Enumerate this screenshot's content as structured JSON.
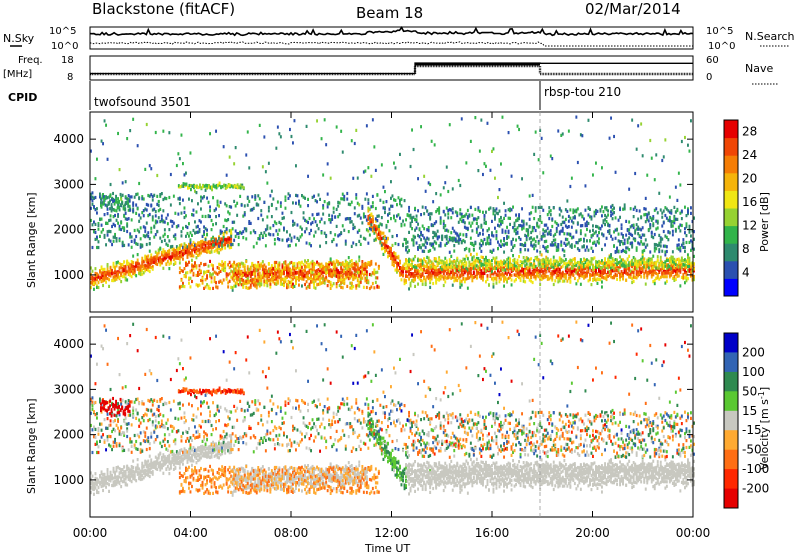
{
  "header": {
    "station": "Blackstone (fitACF)",
    "beam": "Beam 18",
    "date": "02/Mar/2014"
  },
  "noise_panel": {
    "left_label": "N.Sky",
    "right_label": "N.Search",
    "left_ticks": [
      "10^5",
      "10^0"
    ],
    "right_ticks": [
      "10^5",
      "10^0"
    ]
  },
  "freq_panel": {
    "left_label_1": "Freq.",
    "left_label_2": "[MHz]",
    "right_label": "Nave",
    "left_ticks": [
      "18",
      "8"
    ],
    "right_ticks": [
      "60",
      "0"
    ]
  },
  "cpid": {
    "label": "CPID",
    "segments": [
      {
        "start": "00:00",
        "name": "twofsound 3501"
      },
      {
        "start": "18:00",
        "name": "rbsp-tou 210"
      }
    ]
  },
  "colors": {
    "power": [
      "#0000ff",
      "#2b50b0",
      "#2e8a6e",
      "#32b44a",
      "#96d232",
      "#f0e614",
      "#f5b40a",
      "#f57d05",
      "#f04605",
      "#e60000"
    ],
    "velocity": [
      "#0000c8",
      "#3264b4",
      "#2f8a50",
      "#5ac832",
      "#c8c8c0",
      "#ffaa32",
      "#ff6e14",
      "#ff2800",
      "#e60000"
    ]
  },
  "chart_data": [
    {
      "type": "heatmap",
      "name": "power",
      "xlabel": "Time UT",
      "ylabel": "Slant Range [km]",
      "xlim": [
        "00:00",
        "24:00"
      ],
      "ylim": [
        180,
        4600
      ],
      "x_ticks": [
        "00:00",
        "04:00",
        "08:00",
        "12:00",
        "16:00",
        "20:00",
        "00:00"
      ],
      "y_ticks": [
        1000,
        2000,
        3000,
        4000
      ],
      "colorbar": {
        "label": "Power [dB]",
        "ticks": [
          4,
          8,
          12,
          16,
          20,
          24,
          28
        ],
        "range": [
          0,
          30
        ]
      }
    },
    {
      "type": "heatmap",
      "name": "velocity",
      "xlabel": "Time UT",
      "ylabel": "Slant Range [km]",
      "xlim": [
        "00:00",
        "24:00"
      ],
      "ylim": [
        180,
        4600
      ],
      "x_ticks": [
        "00:00",
        "04:00",
        "08:00",
        "12:00",
        "16:00",
        "20:00",
        "00:00"
      ],
      "y_ticks": [
        1000,
        2000,
        3000,
        4000
      ],
      "colorbar": {
        "label": "Velocity [m s^-1]",
        "ticks": [
          "200",
          "100",
          "50",
          "15",
          "-15",
          "-50",
          "-100",
          "-200"
        ]
      }
    }
  ]
}
